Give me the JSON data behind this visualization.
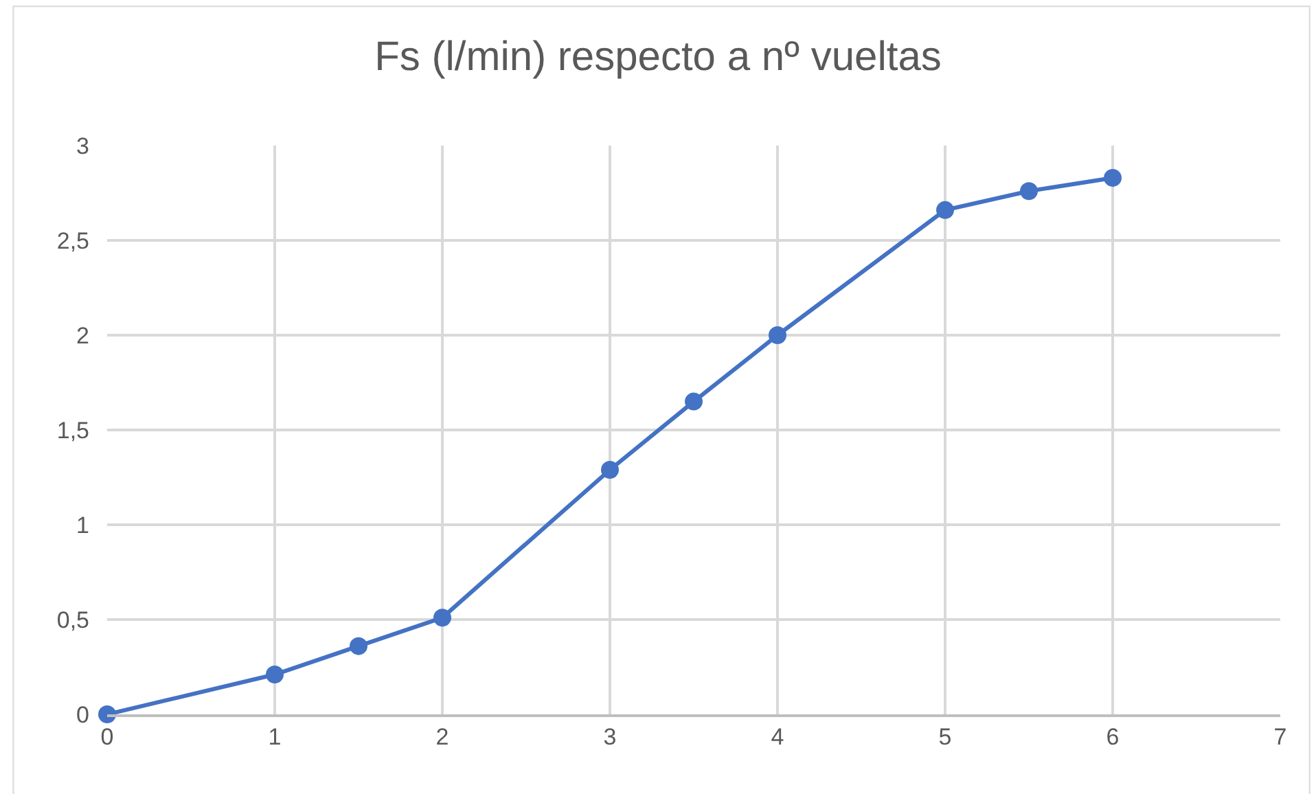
{
  "chart_data": {
    "type": "line",
    "title": "Fs (l/min) respecto a nº vueltas",
    "x": [
      0,
      1,
      1.5,
      2,
      3,
      3.5,
      4,
      5,
      5.5,
      6
    ],
    "series": [
      {
        "color": "#4472c4",
        "values": [
          0,
          0.21,
          0.36,
          0.51,
          1.29,
          1.65,
          2.0,
          2.66,
          2.76,
          2.83
        ]
      }
    ],
    "xlim": [
      0,
      7
    ],
    "xticks": [
      0,
      1,
      2,
      3,
      4,
      5,
      6,
      7
    ],
    "ylim": [
      0,
      3
    ],
    "yticks": [
      0,
      {
        "value": 0.5,
        "label": "0,5"
      },
      1,
      {
        "value": 1.5,
        "label": "1,5"
      },
      2,
      {
        "value": 2.5,
        "label": "2,5"
      },
      3
    ],
    "grid": true,
    "marker": "circle",
    "line_style": "solid"
  }
}
